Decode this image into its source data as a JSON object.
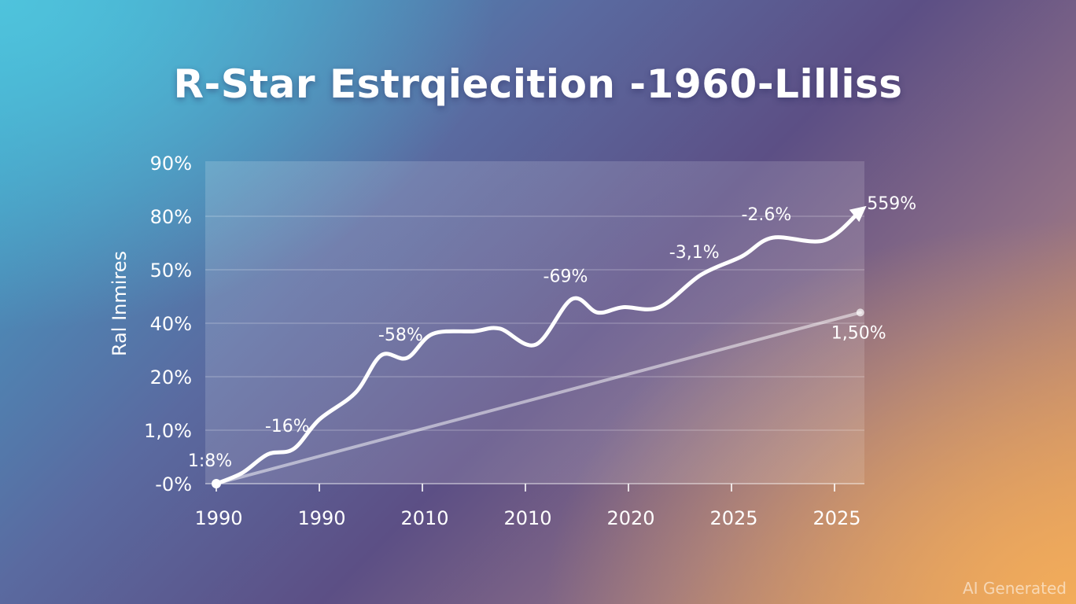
{
  "chart_data": {
    "type": "line",
    "title": "R-Star Estrqiecition -1960-Lilliss",
    "ylabel": "Ral Inmires",
    "y_tick_labels": [
      "-0%",
      "1,0%",
      "20%",
      "40%",
      "50%",
      "80%",
      "90%"
    ],
    "x_tick_labels": [
      "1990",
      "1990",
      "2010",
      "2010",
      "2020",
      "2025",
      "2025"
    ],
    "grid": true,
    "series": [
      {
        "points": [
          [
            0.0,
            0.0
          ],
          [
            0.25,
            0.2
          ],
          [
            0.5,
            0.55
          ],
          [
            0.75,
            0.65
          ],
          [
            1.0,
            1.2
          ],
          [
            1.35,
            1.7
          ],
          [
            1.6,
            2.4
          ],
          [
            1.85,
            2.35
          ],
          [
            2.1,
            2.8
          ],
          [
            2.5,
            2.85
          ],
          [
            2.75,
            2.9
          ],
          [
            3.1,
            2.6
          ],
          [
            3.45,
            3.45
          ],
          [
            3.7,
            3.2
          ],
          [
            3.95,
            3.3
          ],
          [
            4.3,
            3.3
          ],
          [
            4.7,
            3.9
          ],
          [
            5.1,
            4.25
          ],
          [
            5.4,
            4.6
          ],
          [
            5.9,
            4.55
          ],
          [
            6.25,
            5.1
          ]
        ],
        "labels": [
          {
            "text": "1:8%",
            "i": 0
          },
          {
            "text": "-16%",
            "i": 3
          },
          {
            "text": "-58%",
            "i": 7
          },
          {
            "text": "-69%",
            "i": 12
          },
          {
            "text": "-3,1%",
            "i": 16
          },
          {
            "text": "-2.6%",
            "i": 18
          },
          {
            "text": "559%",
            "i": 20
          }
        ],
        "end_arrow": true
      },
      {
        "points": [
          [
            0.0,
            0.0
          ],
          [
            6.25,
            3.2
          ]
        ],
        "labels": [
          {
            "text": "1,50%",
            "i": 1
          }
        ]
      }
    ]
  },
  "watermark": "AI Generated"
}
